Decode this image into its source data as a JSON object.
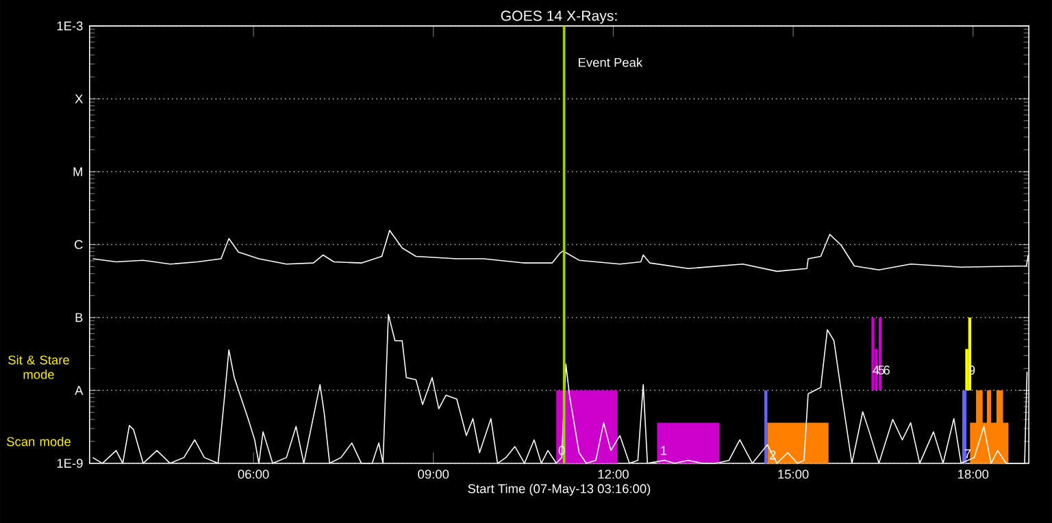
{
  "chart_data": {
    "type": "line",
    "title": "GOES 14 X-Rays:",
    "xlabel": "Start Time (07-May-13 03:16:00)",
    "log": "y",
    "grid": "y",
    "xlim": [
      3.267,
      18.93
    ],
    "ylim": [
      1e-09,
      0.001
    ],
    "xticks": [
      {
        "value": 6,
        "label": "06:00"
      },
      {
        "value": 9,
        "label": "09:00"
      },
      {
        "value": 12,
        "label": "12:00"
      },
      {
        "value": 15,
        "label": "15:00"
      },
      {
        "value": 18,
        "label": "18:00"
      }
    ],
    "yticks": [
      {
        "value": 1e-09,
        "label": "1E-9"
      },
      {
        "value": 1e-08,
        "label": "A"
      },
      {
        "value": 1e-07,
        "label": "B"
      },
      {
        "value": 1e-06,
        "label": "C"
      },
      {
        "value": 1e-05,
        "label": "M"
      },
      {
        "value": 0.0001,
        "label": "X"
      },
      {
        "value": 0.001,
        "label": "1E-3"
      }
    ],
    "series": [
      {
        "type": "area",
        "color": "#cc00cc",
        "x": [
          11.05,
          12.07,
          null,
          12.73,
          13.77
        ],
        "values": [
          1e-08,
          1e-08,
          null,
          3.6e-09,
          3.6e-09
        ]
      },
      {
        "type": "bar",
        "color": "#cc00cc",
        "x": [
          16.33,
          16.385,
          16.45
        ],
        "base": [
          1e-08,
          1e-08,
          1e-08
        ],
        "values": [
          9e-08,
          2.7e-08,
          9e-08
        ]
      },
      {
        "type": "bar",
        "color": "#ffff00",
        "x": [
          17.895,
          17.945
        ],
        "base": [
          1e-08,
          1e-08
        ],
        "values": [
          2.7e-08,
          9e-08
        ]
      },
      {
        "type": "area",
        "color": "#6666ff",
        "x": [
          14.52,
          14.57,
          null,
          17.82,
          17.89
        ],
        "values": [
          1e-08,
          1e-08,
          null,
          1e-08,
          1e-08
        ]
      },
      {
        "type": "area",
        "color": "#ff8000",
        "x": [
          14.57,
          15.59,
          null,
          17.95,
          18.05,
          18.05,
          18.16,
          18.16,
          18.23,
          18.23,
          18.3,
          18.3,
          18.39,
          18.39,
          18.5,
          18.5,
          18.59
        ],
        "values": [
          3.6e-09,
          3.6e-09,
          null,
          3.6e-09,
          3.6e-09,
          1e-08,
          1e-08,
          3.6e-09,
          3.6e-09,
          1e-08,
          1e-08,
          3.6e-09,
          3.6e-09,
          1e-08,
          1e-08,
          3.6e-09,
          3.6e-09
        ]
      },
      {
        "color": "#ffffff",
        "x": [
          3.32,
          3.71,
          4.16,
          4.61,
          5.07,
          5.46,
          5.59,
          5.75,
          6.09,
          6.55,
          7.0,
          7.16,
          7.34,
          7.8,
          8.14,
          8.27,
          8.48,
          8.71,
          9.39,
          9.84,
          10.52,
          10.98,
          11.11,
          11.16,
          11.43,
          12.11,
          12.46,
          12.5,
          12.61,
          13.25,
          14.16,
          14.73,
          15.23,
          15.25,
          15.46,
          15.61,
          15.8,
          16.02,
          16.43,
          16.96,
          17.8,
          18.89,
          18.92
        ],
        "values": [
          6.4e-07,
          5.8e-07,
          6.1e-07,
          5.4e-07,
          5.8e-07,
          6.4e-07,
          1.21e-06,
          7.9e-07,
          6.4e-07,
          5.4e-07,
          5.6e-07,
          7.2e-07,
          5.8e-07,
          5.6e-07,
          6.9e-07,
          1.57e-06,
          9e-07,
          6.9e-07,
          6.4e-07,
          6.4e-07,
          5.6e-07,
          5.6e-07,
          7.6e-07,
          8.2e-07,
          6.1e-07,
          5.4e-07,
          5.8e-07,
          7.2e-07,
          5.6e-07,
          4.7e-07,
          5.4e-07,
          4.3e-07,
          4.7e-07,
          6.4e-07,
          6.9e-07,
          1.38e-06,
          9.8e-07,
          5.1e-07,
          4.5e-07,
          5.4e-07,
          4.9e-07,
          5.1e-07,
          7.2e-07
        ]
      },
      {
        "color": "#ffffff",
        "x": [
          3.32,
          3.48,
          3.71,
          3.82,
          3.93,
          4.0,
          4.16,
          4.39,
          4.61,
          4.84,
          5.02,
          5.18,
          5.41,
          5.52,
          5.59,
          5.68,
          5.8,
          5.91,
          6.02,
          6.09,
          6.16,
          6.32,
          6.55,
          6.71,
          6.84,
          7.11,
          7.18,
          7.27,
          7.46,
          7.64,
          7.8,
          7.98,
          8.09,
          8.16,
          8.25,
          8.36,
          8.48,
          8.55,
          8.71,
          8.82,
          8.98,
          9.09,
          9.21,
          9.39,
          9.55,
          9.66,
          9.77,
          9.96,
          10.07,
          10.21,
          10.36,
          10.52,
          10.68,
          10.8,
          10.91,
          11.05,
          11.14,
          11.21,
          11.27,
          11.43,
          11.55,
          11.71,
          11.84,
          11.96,
          12.11,
          12.27,
          12.41,
          12.5,
          12.57,
          12.86,
          13.02,
          13.25,
          13.48,
          13.71,
          13.93,
          14.11,
          14.32,
          14.57,
          14.73,
          14.91,
          15.07,
          15.18,
          15.25,
          15.34,
          15.46,
          15.57,
          15.68,
          15.82,
          15.98,
          16.16,
          16.27,
          16.43,
          16.66,
          16.82,
          16.96,
          17.11,
          17.34,
          17.5,
          17.68,
          17.8,
          18.02,
          18.18,
          18.3,
          18.41,
          18.55,
          18.86,
          18.9
        ],
        "values": [
          1.2e-09,
          1e-09,
          1.5e-09,
          1e-09,
          3.3e-09,
          2.9e-09,
          1e-09,
          1.5e-09,
          1e-09,
          1.2e-09,
          2.1e-09,
          1.2e-09,
          1e-09,
          8.6e-09,
          3.6e-08,
          1.5e-08,
          7.6e-09,
          4.1e-09,
          2.1e-09,
          1e-09,
          2.7e-09,
          1e-09,
          1.2e-09,
          3.2e-09,
          1e-09,
          1.2e-08,
          4.9e-09,
          1e-09,
          1.2e-09,
          1.9e-09,
          1e-09,
          1e-09,
          1.9e-09,
          1e-09,
          1.1e-07,
          4.8e-08,
          4.8e-08,
          1.5e-08,
          1.4e-08,
          6.4e-09,
          1.5e-08,
          5.6e-09,
          8.6e-09,
          7.6e-09,
          2.4e-09,
          4.1e-09,
          1.4e-09,
          4.1e-09,
          1e-09,
          1.2e-09,
          1.7e-09,
          1e-09,
          2.1e-09,
          1e-09,
          1.5e-09,
          1e-09,
          1.2e-09,
          2.3e-08,
          8.6e-09,
          1.4e-09,
          1e-09,
          1.1e-09,
          3.6e-09,
          1.5e-09,
          2.4e-09,
          1e-09,
          1.1e-09,
          1.2e-08,
          1e-09,
          1.1e-09,
          1e-09,
          1.1e-09,
          1e-09,
          1e-09,
          1.1e-09,
          2.1e-09,
          1e-09,
          1.8e-09,
          1e-09,
          1.4e-09,
          1e-09,
          1.1e-09,
          9e-09,
          9.8e-09,
          1.1e-08,
          6.8e-08,
          4.8e-08,
          7.6e-09,
          1e-09,
          5.1e-09,
          2.7e-09,
          1e-09,
          4e-09,
          2.1e-09,
          3.6e-09,
          1e-09,
          2.7e-09,
          1e-09,
          4.1e-09,
          1e-09,
          1.2e-09,
          3.2e-09,
          1e-09,
          1.5e-09,
          1e-09,
          1e-09,
          1.8e-08
        ]
      }
    ],
    "ref_lines": [
      {
        "axis": "x",
        "value": 11.18,
        "label": "Event Peak",
        "color": "#a0d000"
      }
    ],
    "annotations": [
      "Sit & Stare mode",
      "Scan mode",
      {
        "text": "0",
        "x": 11.14,
        "y": 1.5e-09
      },
      {
        "text": "1",
        "x": 12.84,
        "y": 1.5e-09
      },
      {
        "text": "2",
        "x": 14.66,
        "y": 1.3e-09
      },
      {
        "text": "4",
        "x": 16.38,
        "y": 1.9e-08
      },
      {
        "text": "5",
        "x": 16.47,
        "y": 1.9e-08
      },
      {
        "text": "6",
        "x": 16.56,
        "y": 1.9e-08
      },
      {
        "text": "9",
        "x": 17.98,
        "y": 1.9e-08
      },
      {
        "text": "7",
        "x": 17.91,
        "y": 1.35e-09
      }
    ]
  }
}
